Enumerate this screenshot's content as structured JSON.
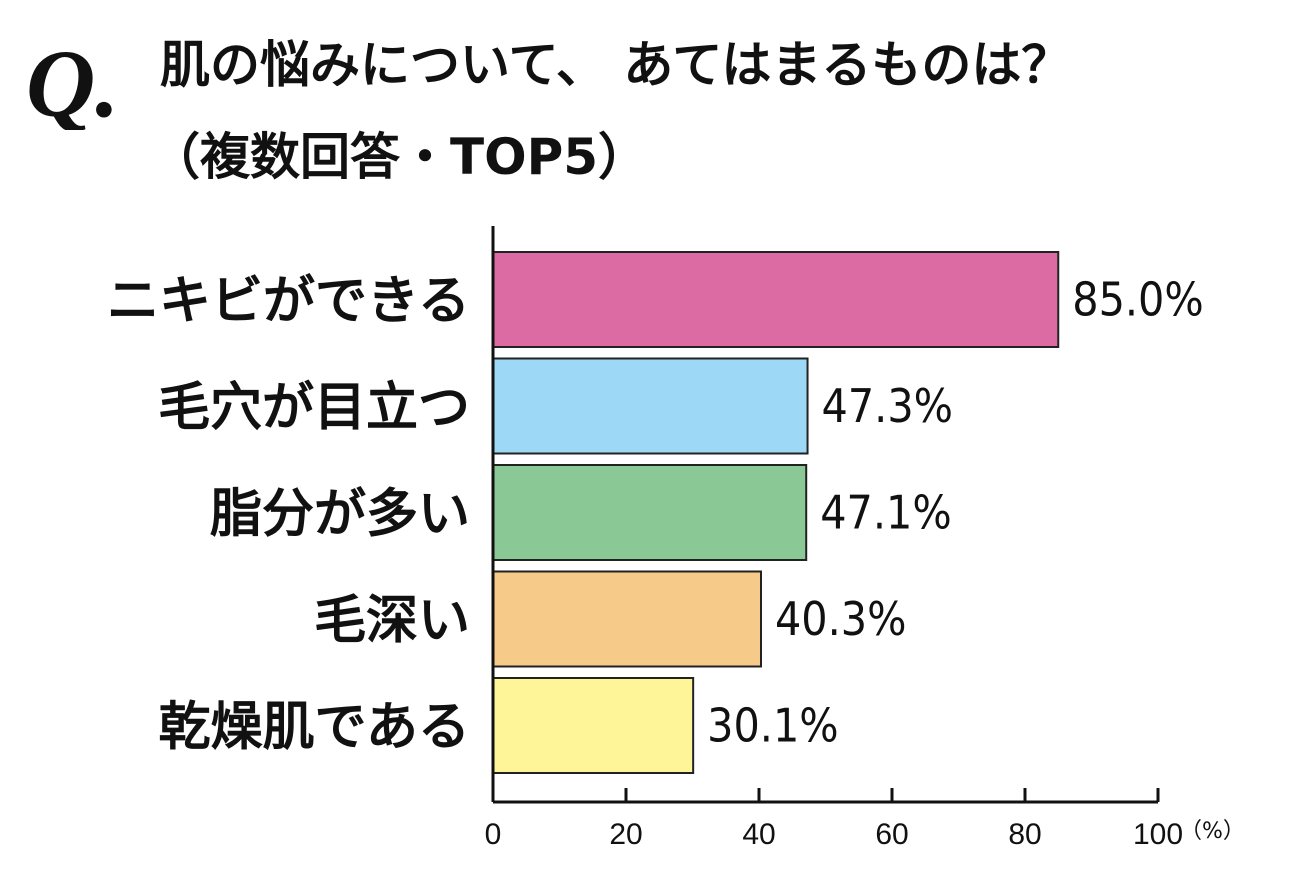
{
  "title": {
    "line1": "肌の悩みについて、 あてはまるものは？",
    "line2": "（複数回答・TOP5）",
    "q_mark": "Q."
  },
  "chart_data": {
    "type": "bar",
    "orientation": "horizontal",
    "categories": [
      "ニキビができる",
      "毛穴が目立つ",
      "脂分が多い",
      "毛深い",
      "乾燥肌である"
    ],
    "values": [
      85.0,
      47.3,
      47.1,
      40.3,
      30.1
    ],
    "value_labels": [
      "85.0%",
      "47.3%",
      "47.1%",
      "40.3%",
      "30.1%"
    ],
    "colors": [
      "#dc6ba3",
      "#9dd8f6",
      "#8ac996",
      "#f6ca88",
      "#fdf597"
    ],
    "xlim": [
      0,
      100
    ],
    "xticks": [
      0,
      20,
      40,
      60,
      80,
      100
    ],
    "xtick_labels": [
      "0",
      "20",
      "40",
      "60",
      "80",
      "100"
    ],
    "x_unit": "（%）",
    "grid": false,
    "legend": "none"
  }
}
